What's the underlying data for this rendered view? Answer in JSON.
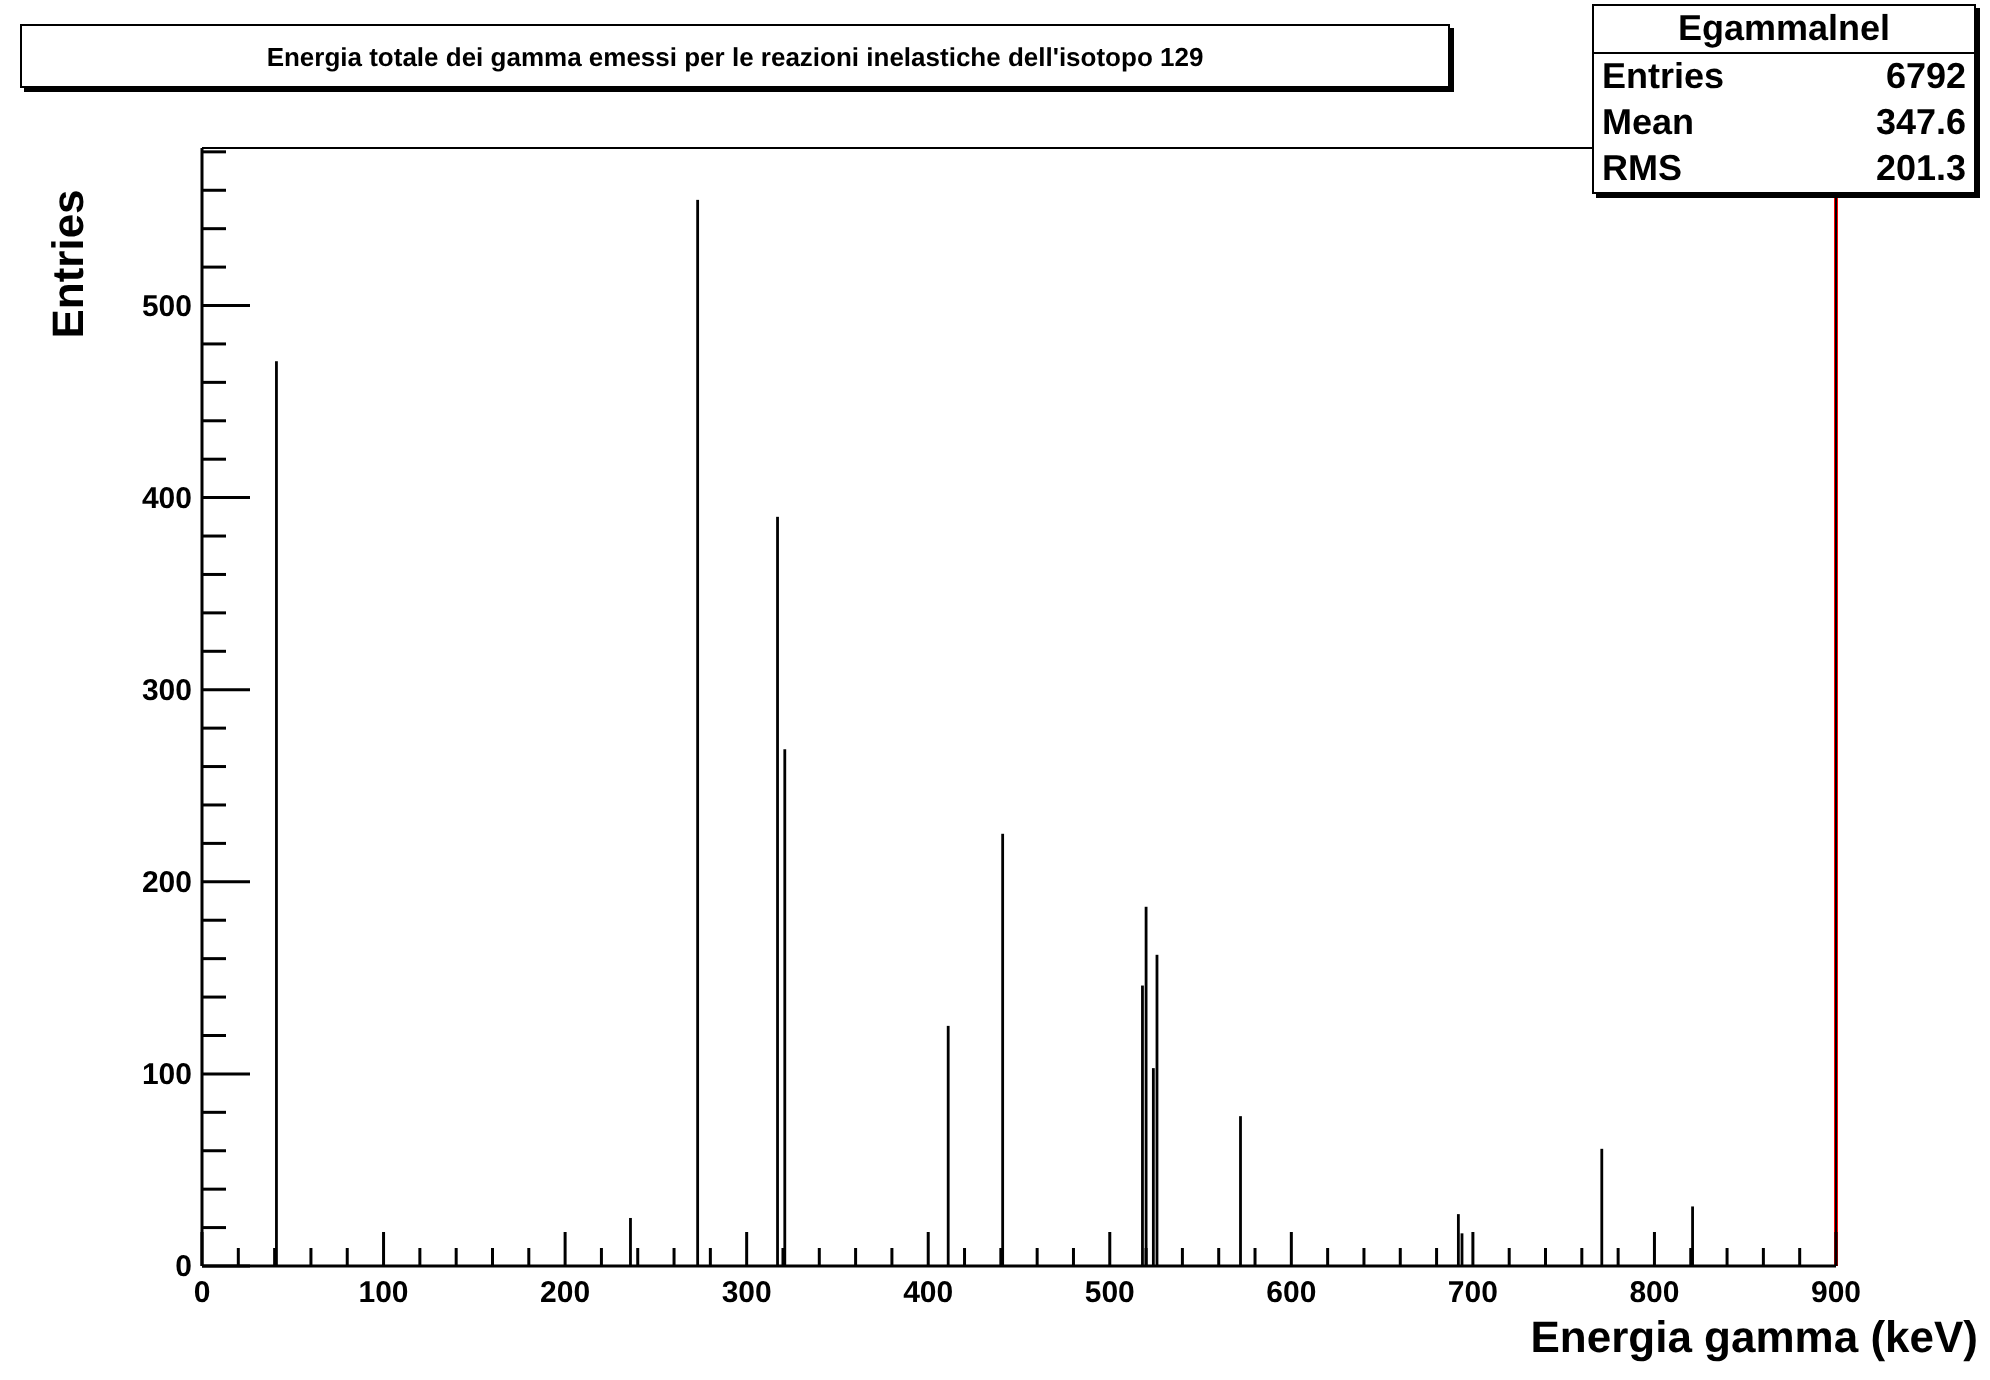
{
  "chart_data": {
    "type": "bar",
    "title": "Energia totale dei gamma emessi per le reazioni inelastiche dell'isotopo 129",
    "xlabel": "Energia gamma (keV)",
    "ylabel": "Entries",
    "x": [
      41,
      236,
      273,
      317,
      321,
      411,
      441,
      518,
      520,
      524,
      526,
      572,
      692,
      694,
      771,
      821
    ],
    "values": [
      471,
      25,
      555,
      390,
      269,
      125,
      225,
      146,
      187,
      103,
      162,
      78,
      27,
      17,
      61,
      31
    ],
    "color": "#000000",
    "xlim": [
      0,
      900
    ],
    "xticks": [
      0,
      {
        "value": 20,
        "label": null
      },
      {
        "value": 40,
        "label": null
      },
      {
        "value": 60,
        "label": null
      },
      {
        "value": 80,
        "label": null
      },
      100,
      {
        "value": 120,
        "label": null
      },
      {
        "value": 140,
        "label": null
      },
      {
        "value": 160,
        "label": null
      },
      {
        "value": 180,
        "label": null
      },
      200,
      {
        "value": 220,
        "label": null
      },
      {
        "value": 240,
        "label": null
      },
      {
        "value": 260,
        "label": null
      },
      {
        "value": 280,
        "label": null
      },
      300,
      {
        "value": 320,
        "label": null
      },
      {
        "value": 340,
        "label": null
      },
      {
        "value": 360,
        "label": null
      },
      {
        "value": 380,
        "label": null
      },
      400,
      {
        "value": 420,
        "label": null
      },
      {
        "value": 440,
        "label": null
      },
      {
        "value": 460,
        "label": null
      },
      {
        "value": 480,
        "label": null
      },
      500,
      {
        "value": 520,
        "label": null
      },
      {
        "value": 540,
        "label": null
      },
      {
        "value": 560,
        "label": null
      },
      {
        "value": 580,
        "label": null
      },
      600,
      {
        "value": 620,
        "label": null
      },
      {
        "value": 640,
        "label": null
      },
      {
        "value": 660,
        "label": null
      },
      {
        "value": 680,
        "label": null
      },
      700,
      {
        "value": 720,
        "label": null
      },
      {
        "value": 740,
        "label": null
      },
      {
        "value": 760,
        "label": null
      },
      {
        "value": 780,
        "label": null
      },
      800,
      {
        "value": 820,
        "label": null
      },
      {
        "value": 840,
        "label": null
      },
      {
        "value": 860,
        "label": null
      },
      {
        "value": 880,
        "label": null
      },
      900
    ],
    "ylim": [
      0,
      582
    ],
    "yticks": [
      0,
      {
        "value": 20,
        "label": null
      },
      {
        "value": 40,
        "label": null
      },
      {
        "value": 60,
        "label": null
      },
      {
        "value": 80,
        "label": null
      },
      100,
      {
        "value": 120,
        "label": null
      },
      {
        "value": 140,
        "label": null
      },
      {
        "value": 160,
        "label": null
      },
      {
        "value": 180,
        "label": null
      },
      200,
      {
        "value": 220,
        "label": null
      },
      {
        "value": 240,
        "label": null
      },
      {
        "value": 260,
        "label": null
      },
      {
        "value": 280,
        "label": null
      },
      300,
      {
        "value": 320,
        "label": null
      },
      {
        "value": 340,
        "label": null
      },
      {
        "value": 360,
        "label": null
      },
      {
        "value": 380,
        "label": null
      },
      400,
      {
        "value": 420,
        "label": null
      },
      {
        "value": 440,
        "label": null
      },
      {
        "value": 460,
        "label": null
      },
      {
        "value": 480,
        "label": null
      },
      500,
      {
        "value": 520,
        "label": null
      },
      {
        "value": 540,
        "label": null
      },
      {
        "value": 560,
        "label": null
      },
      {
        "value": 580,
        "label": null
      }
    ],
    "ref_lines": [
      {
        "axis": "x",
        "value": 900,
        "color": "#ff0000"
      }
    ],
    "annotations": [
      "Egammalnel",
      "Entries",
      "6792",
      "Mean",
      "347.6",
      "RMS",
      "201.3"
    ],
    "grid": false,
    "legend": false
  }
}
